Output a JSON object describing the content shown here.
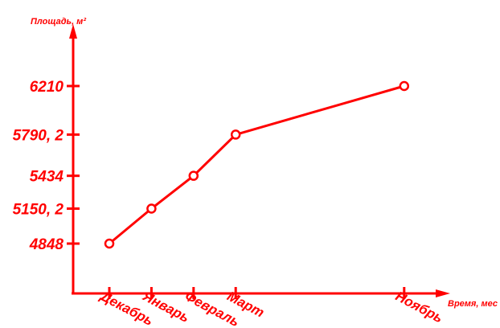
{
  "chart_data": {
    "type": "line",
    "title": "",
    "ylabel": "Площадь, м²",
    "xlabel": "Время, мес",
    "categories": [
      "Декабрь",
      "Январь",
      "Февраль",
      "Март",
      "Ноябрь"
    ],
    "month_offsets": [
      0,
      1,
      2,
      3,
      7
    ],
    "y_tick_labels": [
      "4848",
      "5150, 2",
      "5434",
      "5790, 2",
      "6210"
    ],
    "y_tick_values": [
      4848,
      5150.2,
      5434,
      5790.2,
      6210
    ],
    "series": [
      {
        "values": [
          4848,
          5150.2,
          5434,
          5790.2,
          6210
        ]
      }
    ],
    "grid": false,
    "colors": {
      "axis": "#ff0000",
      "line": "#ff0000"
    }
  }
}
